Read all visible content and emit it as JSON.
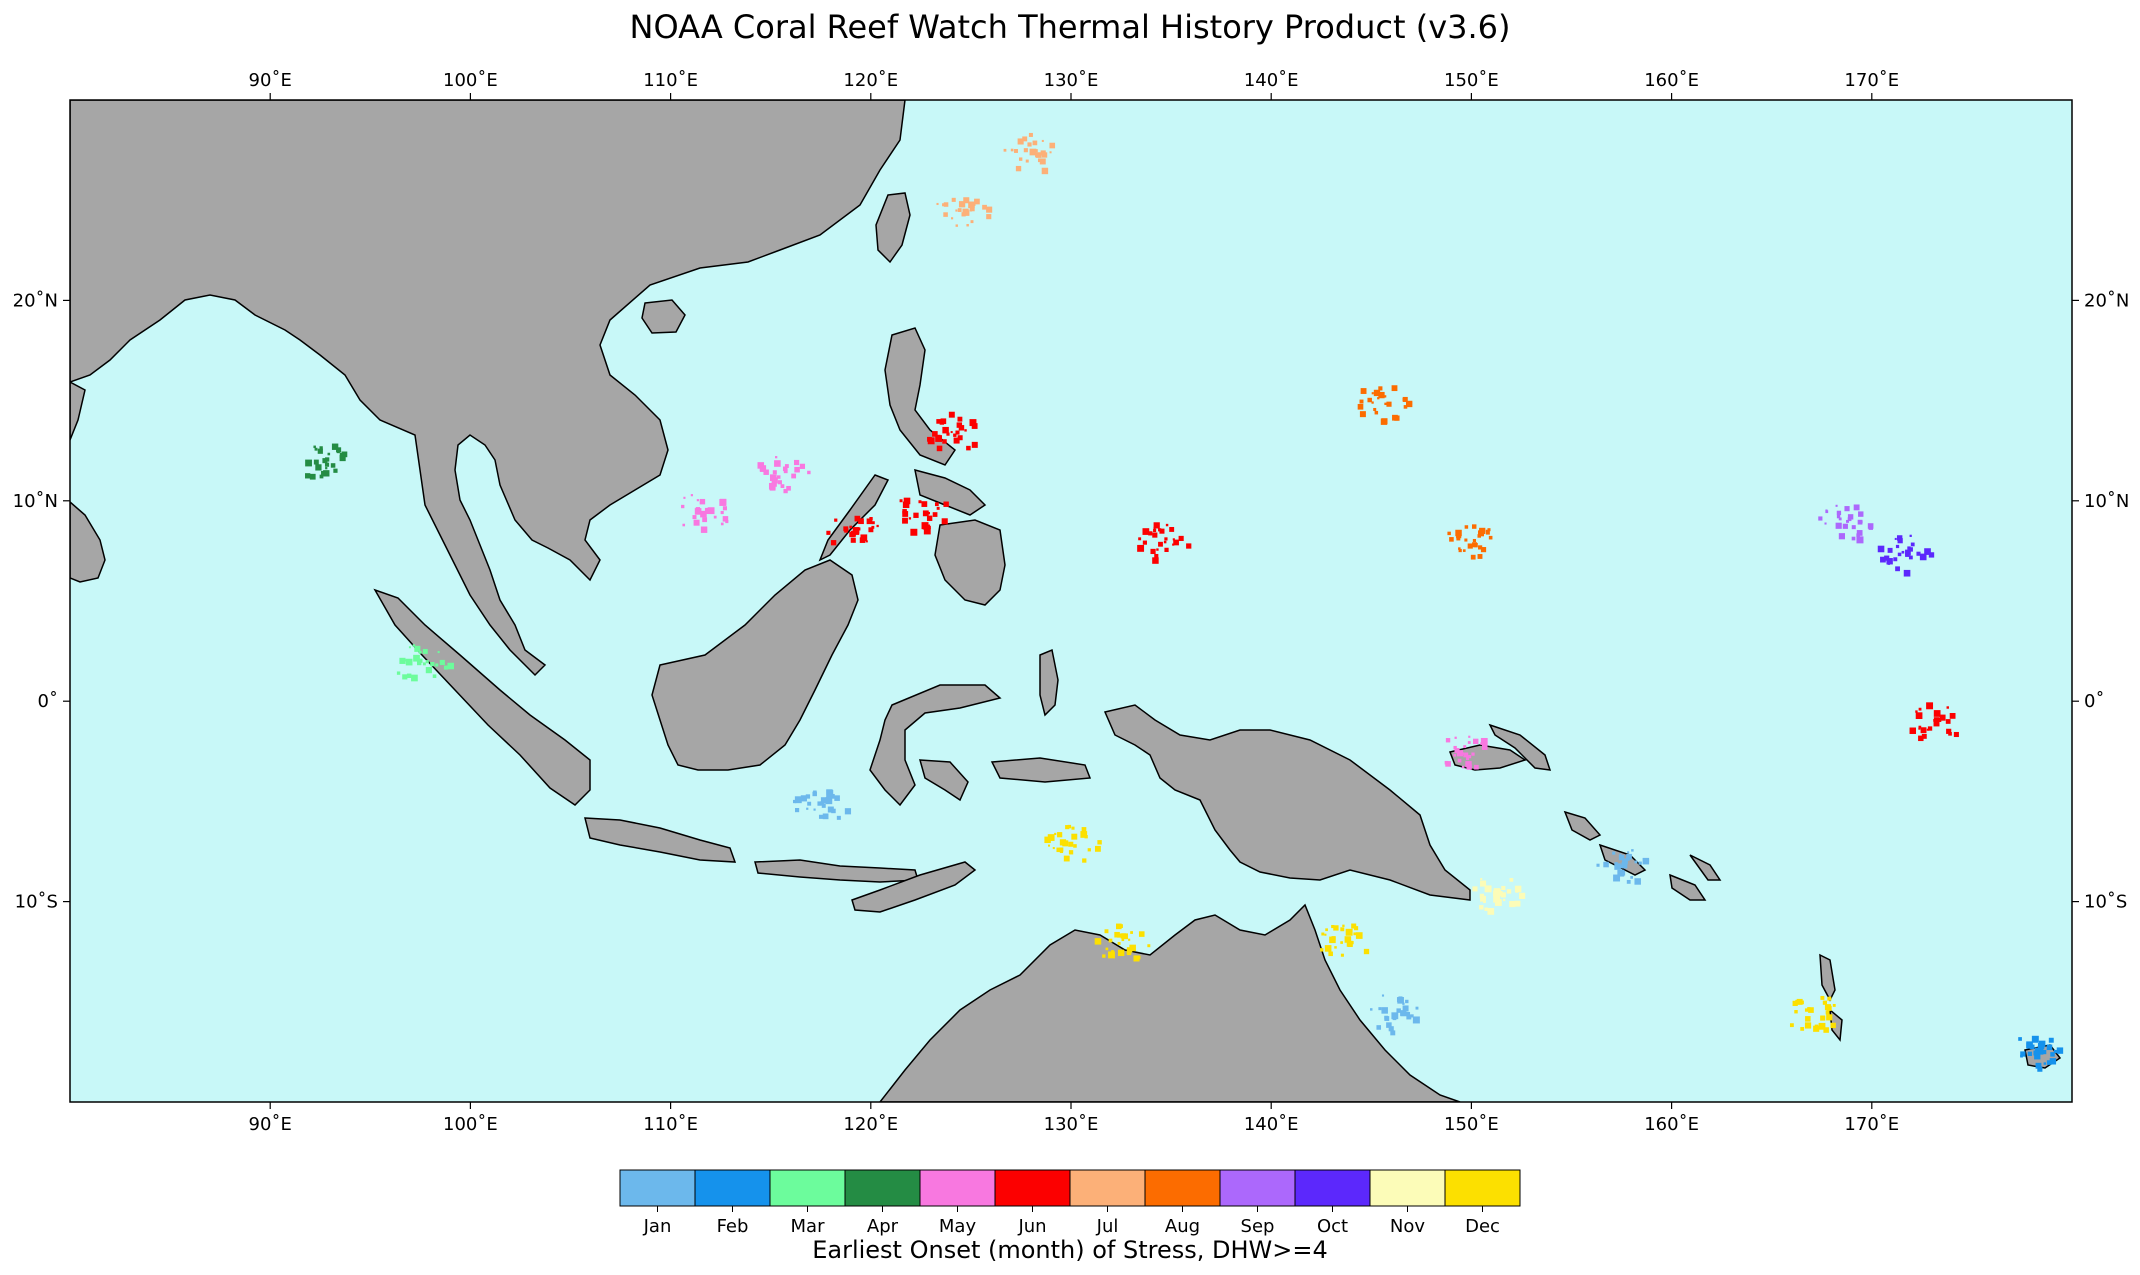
{
  "title": "NOAA Coral Reef Watch Thermal History Product (v3.6)",
  "map": {
    "projection": "plate-carree",
    "lon_range": [
      80,
      180
    ],
    "lat_range": [
      -20,
      30
    ],
    "lon_ticks": [
      {
        "value": 90,
        "label": "90˚E"
      },
      {
        "value": 100,
        "label": "100˚E"
      },
      {
        "value": 110,
        "label": "110˚E"
      },
      {
        "value": 120,
        "label": "120˚E"
      },
      {
        "value": 130,
        "label": "130˚E"
      },
      {
        "value": 140,
        "label": "140˚E"
      },
      {
        "value": 150,
        "label": "150˚E"
      },
      {
        "value": 160,
        "label": "160˚E"
      },
      {
        "value": 170,
        "label": "170˚E"
      }
    ],
    "lat_ticks": [
      {
        "value": 20,
        "label": "20˚N"
      },
      {
        "value": 10,
        "label": "10˚N"
      },
      {
        "value": 0,
        "label": "0˚"
      },
      {
        "value": -10,
        "label": "10˚S"
      }
    ],
    "ocean_color": "#c8f8f8",
    "land_color": "#a6a6a6",
    "coastline_color": "#000000"
  },
  "colorbar": {
    "label": "Earliest Onset (month) of Stress, DHW>=4",
    "months": [
      {
        "label": "Jan",
        "color": "#6cb8ec"
      },
      {
        "label": "Feb",
        "color": "#1592ec"
      },
      {
        "label": "Mar",
        "color": "#6cfc9c"
      },
      {
        "label": "Apr",
        "color": "#248c44"
      },
      {
        "label": "May",
        "color": "#f878e0"
      },
      {
        "label": "Jun",
        "color": "#fc0000"
      },
      {
        "label": "Jul",
        "color": "#fcb078"
      },
      {
        "label": "Aug",
        "color": "#fc6c00"
      },
      {
        "label": "Sep",
        "color": "#ac68fc"
      },
      {
        "label": "Oct",
        "color": "#5c28fc"
      },
      {
        "label": "Nov",
        "color": "#fcfcb8"
      },
      {
        "label": "Dec",
        "color": "#fce000"
      }
    ]
  },
  "stress_clusters": [
    {
      "lon": 115.5,
      "lat": 11.5,
      "month": 5
    },
    {
      "lon": 111.5,
      "lat": 9.5,
      "month": 5
    },
    {
      "lon": 122.5,
      "lat": 9.5,
      "month": 6
    },
    {
      "lon": 124.0,
      "lat": 13.5,
      "month": 6
    },
    {
      "lon": 119.0,
      "lat": 8.5,
      "month": 6
    },
    {
      "lon": 145.5,
      "lat": 15.0,
      "month": 8
    },
    {
      "lon": 150.0,
      "lat": 8.0,
      "month": 8
    },
    {
      "lon": 134.5,
      "lat": 8.0,
      "month": 6
    },
    {
      "lon": 168.5,
      "lat": 9.0,
      "month": 9
    },
    {
      "lon": 171.5,
      "lat": 7.5,
      "month": 10
    },
    {
      "lon": 128.0,
      "lat": 27.5,
      "month": 7
    },
    {
      "lon": 124.5,
      "lat": 24.5,
      "month": 7
    },
    {
      "lon": 92.5,
      "lat": 12.0,
      "month": 4
    },
    {
      "lon": 97.5,
      "lat": 2.0,
      "month": 3
    },
    {
      "lon": 117.5,
      "lat": -5.0,
      "month": 1
    },
    {
      "lon": 143.5,
      "lat": -12.0,
      "month": 12
    },
    {
      "lon": 146.0,
      "lat": -15.5,
      "month": 1
    },
    {
      "lon": 151.0,
      "lat": -9.5,
      "month": 11
    },
    {
      "lon": 149.5,
      "lat": -2.5,
      "month": 5
    },
    {
      "lon": 157.5,
      "lat": -8.0,
      "month": 1
    },
    {
      "lon": 167.0,
      "lat": -15.5,
      "month": 12
    },
    {
      "lon": 178.0,
      "lat": -17.5,
      "month": 2
    },
    {
      "lon": 173.0,
      "lat": -1.0,
      "month": 6
    },
    {
      "lon": 130.0,
      "lat": -7.0,
      "month": 12
    },
    {
      "lon": 132.5,
      "lat": -12.0,
      "month": 12
    }
  ]
}
